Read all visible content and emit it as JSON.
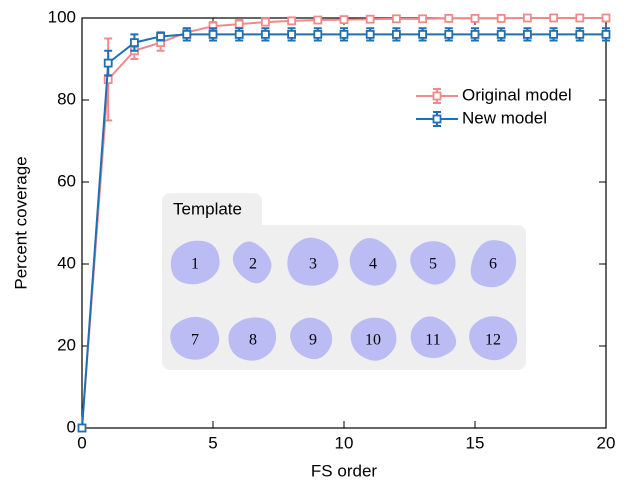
{
  "chart_data": {
    "type": "line",
    "xlabel": "FS order",
    "ylabel": "Percent coverage",
    "x": [
      0,
      1,
      2,
      3,
      4,
      5,
      6,
      7,
      8,
      9,
      10,
      11,
      12,
      13,
      14,
      15,
      16,
      17,
      18,
      19,
      20
    ],
    "series": [
      {
        "name": "Original model",
        "color": "#f08a8a",
        "values": [
          0,
          85,
          92,
          94,
          96.5,
          98,
          98.5,
          99,
          99.3,
          99.5,
          99.6,
          99.7,
          99.8,
          99.8,
          99.9,
          99.9,
          99.9,
          100,
          100,
          100,
          100
        ],
        "errors": [
          0,
          10,
          2,
          2,
          1,
          1,
          1,
          0.8,
          0.6,
          0.5,
          0.4,
          0.3,
          0.3,
          0.3,
          0.2,
          0.2,
          0.2,
          0.2,
          0.2,
          0.2,
          0.2
        ]
      },
      {
        "name": "New model",
        "color": "#1f6fb4",
        "values": [
          0,
          89,
          94,
          95.5,
          96,
          96,
          96,
          96,
          96,
          96,
          96,
          96,
          96,
          96,
          96,
          96,
          96,
          96,
          96,
          96,
          96
        ],
        "errors": [
          0,
          3,
          2,
          1,
          1.5,
          1.5,
          1.5,
          1.5,
          1.5,
          1.5,
          1.5,
          1.5,
          1.5,
          1.5,
          1.5,
          1.5,
          1.5,
          1.5,
          1.5,
          1.5,
          1.5
        ]
      }
    ],
    "xlim": [
      0,
      20
    ],
    "ylim": [
      0,
      100
    ],
    "xticks": [
      0,
      5,
      10,
      15,
      20
    ],
    "yticks": [
      0,
      20,
      40,
      60,
      80,
      100
    ],
    "legend": "upper right",
    "inset": {
      "title": "Template",
      "labels": [
        "1",
        "2",
        "3",
        "4",
        "5",
        "6",
        "7",
        "8",
        "9",
        "10",
        "11",
        "12"
      ]
    }
  }
}
